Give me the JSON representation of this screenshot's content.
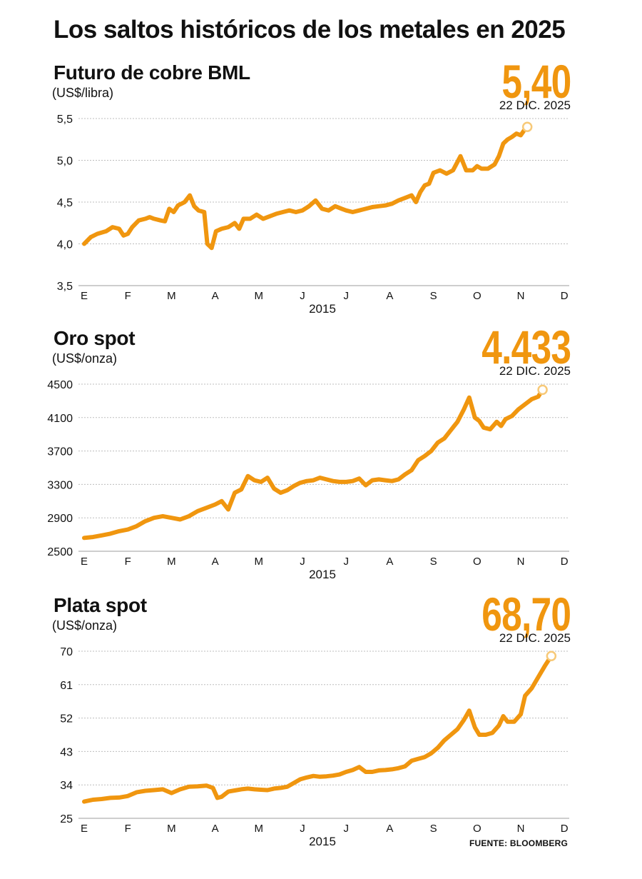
{
  "title": "Los saltos históricos de los metales en 2025",
  "source": "FUENTE: BLOOMBERG",
  "colors": {
    "line": "#f0960f",
    "end_marker": "#f7c978",
    "grid": "#bdbdbd",
    "text": "#111111"
  },
  "chart_data": [
    {
      "type": "line",
      "title": "Futuro de cobre BML",
      "unit": "(US$/libra)",
      "last_value_label": "5,40",
      "last_date_label": "22 DIC. 2025",
      "x_ticks": [
        "E",
        "F",
        "M",
        "A",
        "M",
        "J",
        "J",
        "A",
        "S",
        "O",
        "N",
        "D"
      ],
      "xlabel": "2015",
      "y_ticks": [
        "5,5",
        "5,0",
        "4,5",
        "4,0",
        "3,5"
      ],
      "ylim": [
        3.5,
        5.5
      ],
      "series": [
        {
          "values": [
            [
              0,
              4.0
            ],
            [
              0.15,
              4.08
            ],
            [
              0.3,
              4.12
            ],
            [
              0.5,
              4.15
            ],
            [
              0.65,
              4.2
            ],
            [
              0.8,
              4.18
            ],
            [
              0.9,
              4.1
            ],
            [
              1.0,
              4.12
            ],
            [
              1.1,
              4.2
            ],
            [
              1.25,
              4.28
            ],
            [
              1.4,
              4.3
            ],
            [
              1.5,
              4.32
            ],
            [
              1.6,
              4.3
            ],
            [
              1.75,
              4.28
            ],
            [
              1.85,
              4.27
            ],
            [
              1.95,
              4.42
            ],
            [
              2.05,
              4.38
            ],
            [
              2.15,
              4.46
            ],
            [
              2.3,
              4.5
            ],
            [
              2.42,
              4.58
            ],
            [
              2.52,
              4.45
            ],
            [
              2.62,
              4.4
            ],
            [
              2.75,
              4.38
            ],
            [
              2.82,
              4.0
            ],
            [
              2.92,
              3.95
            ],
            [
              3.02,
              4.15
            ],
            [
              3.15,
              4.18
            ],
            [
              3.3,
              4.2
            ],
            [
              3.45,
              4.25
            ],
            [
              3.55,
              4.18
            ],
            [
              3.65,
              4.3
            ],
            [
              3.8,
              4.3
            ],
            [
              3.95,
              4.35
            ],
            [
              4.1,
              4.3
            ],
            [
              4.25,
              4.33
            ],
            [
              4.4,
              4.36
            ],
            [
              4.55,
              4.38
            ],
            [
              4.7,
              4.4
            ],
            [
              4.85,
              4.38
            ],
            [
              5.0,
              4.4
            ],
            [
              5.15,
              4.45
            ],
            [
              5.3,
              4.52
            ],
            [
              5.45,
              4.42
            ],
            [
              5.6,
              4.4
            ],
            [
              5.75,
              4.45
            ],
            [
              5.9,
              4.42
            ],
            [
              6.0,
              4.4
            ],
            [
              6.15,
              4.38
            ],
            [
              6.3,
              4.4
            ],
            [
              6.45,
              4.42
            ],
            [
              6.6,
              4.44
            ],
            [
              6.75,
              4.45
            ],
            [
              6.9,
              4.46
            ],
            [
              7.05,
              4.48
            ],
            [
              7.2,
              4.52
            ],
            [
              7.35,
              4.55
            ],
            [
              7.5,
              4.58
            ],
            [
              7.6,
              4.5
            ],
            [
              7.7,
              4.62
            ],
            [
              7.8,
              4.7
            ],
            [
              7.9,
              4.72
            ],
            [
              8.0,
              4.85
            ],
            [
              8.15,
              4.88
            ],
            [
              8.3,
              4.84
            ],
            [
              8.45,
              4.88
            ],
            [
              8.55,
              4.98
            ],
            [
              8.62,
              5.05
            ],
            [
              8.75,
              4.88
            ],
            [
              8.9,
              4.88
            ],
            [
              9.0,
              4.93
            ],
            [
              9.1,
              4.9
            ],
            [
              9.25,
              4.9
            ],
            [
              9.4,
              4.95
            ],
            [
              9.5,
              5.05
            ],
            [
              9.6,
              5.2
            ],
            [
              9.7,
              5.25
            ],
            [
              9.8,
              5.28
            ],
            [
              9.9,
              5.32
            ],
            [
              10.0,
              5.3
            ],
            [
              10.08,
              5.36
            ],
            [
              10.15,
              5.4
            ]
          ]
        }
      ]
    },
    {
      "type": "line",
      "title": "Oro spot",
      "unit": "(US$/onza)",
      "last_value_label": "4.433",
      "last_date_label": "22 DIC. 2025",
      "x_ticks": [
        "E",
        "F",
        "M",
        "A",
        "M",
        "J",
        "J",
        "A",
        "S",
        "O",
        "N",
        "D"
      ],
      "xlabel": "2015",
      "y_ticks": [
        "4500",
        "4100",
        "3700",
        "3300",
        "2900",
        "2500"
      ],
      "ylim": [
        2500,
        4500
      ],
      "series": [
        {
          "values": [
            [
              0,
              2660
            ],
            [
              0.2,
              2670
            ],
            [
              0.4,
              2690
            ],
            [
              0.6,
              2710
            ],
            [
              0.8,
              2740
            ],
            [
              1.0,
              2760
            ],
            [
              1.2,
              2800
            ],
            [
              1.4,
              2860
            ],
            [
              1.6,
              2900
            ],
            [
              1.8,
              2920
            ],
            [
              2.0,
              2900
            ],
            [
              2.2,
              2880
            ],
            [
              2.4,
              2920
            ],
            [
              2.6,
              2980
            ],
            [
              2.8,
              3020
            ],
            [
              3.0,
              3060
            ],
            [
              3.15,
              3100
            ],
            [
              3.3,
              3000
            ],
            [
              3.45,
              3200
            ],
            [
              3.6,
              3240
            ],
            [
              3.75,
              3400
            ],
            [
              3.9,
              3350
            ],
            [
              4.05,
              3330
            ],
            [
              4.2,
              3380
            ],
            [
              4.35,
              3250
            ],
            [
              4.5,
              3200
            ],
            [
              4.65,
              3230
            ],
            [
              4.8,
              3280
            ],
            [
              4.95,
              3320
            ],
            [
              5.1,
              3340
            ],
            [
              5.25,
              3350
            ],
            [
              5.4,
              3380
            ],
            [
              5.55,
              3360
            ],
            [
              5.7,
              3340
            ],
            [
              5.85,
              3330
            ],
            [
              6.0,
              3330
            ],
            [
              6.15,
              3340
            ],
            [
              6.3,
              3370
            ],
            [
              6.45,
              3290
            ],
            [
              6.6,
              3350
            ],
            [
              6.75,
              3360
            ],
            [
              6.9,
              3350
            ],
            [
              7.05,
              3340
            ],
            [
              7.2,
              3360
            ],
            [
              7.35,
              3420
            ],
            [
              7.5,
              3470
            ],
            [
              7.65,
              3590
            ],
            [
              7.8,
              3640
            ],
            [
              7.95,
              3700
            ],
            [
              8.1,
              3800
            ],
            [
              8.25,
              3850
            ],
            [
              8.4,
              3950
            ],
            [
              8.55,
              4050
            ],
            [
              8.7,
              4200
            ],
            [
              8.82,
              4340
            ],
            [
              8.95,
              4100
            ],
            [
              9.05,
              4060
            ],
            [
              9.15,
              3980
            ],
            [
              9.3,
              3960
            ],
            [
              9.45,
              4050
            ],
            [
              9.55,
              4000
            ],
            [
              9.65,
              4080
            ],
            [
              9.8,
              4120
            ],
            [
              9.95,
              4200
            ],
            [
              10.1,
              4260
            ],
            [
              10.25,
              4320
            ],
            [
              10.4,
              4350
            ],
            [
              10.5,
              4433
            ]
          ]
        }
      ]
    },
    {
      "type": "line",
      "title": "Plata spot",
      "unit": "(US$/onza)",
      "last_value_label": "68,70",
      "last_date_label": "22 DIC. 2025",
      "x_ticks": [
        "E",
        "F",
        "M",
        "A",
        "M",
        "J",
        "J",
        "A",
        "S",
        "O",
        "N",
        "D"
      ],
      "xlabel": "2015",
      "y_ticks": [
        "70",
        "61",
        "52",
        "43",
        "34",
        "25"
      ],
      "ylim": [
        25,
        70
      ],
      "series": [
        {
          "values": [
            [
              0,
              29.5
            ],
            [
              0.2,
              30.0
            ],
            [
              0.4,
              30.2
            ],
            [
              0.6,
              30.5
            ],
            [
              0.8,
              30.6
            ],
            [
              1.0,
              31.0
            ],
            [
              1.2,
              32.0
            ],
            [
              1.4,
              32.4
            ],
            [
              1.6,
              32.6
            ],
            [
              1.8,
              32.8
            ],
            [
              2.0,
              31.8
            ],
            [
              2.2,
              32.8
            ],
            [
              2.4,
              33.5
            ],
            [
              2.6,
              33.6
            ],
            [
              2.8,
              33.8
            ],
            [
              2.95,
              33.2
            ],
            [
              3.05,
              30.5
            ],
            [
              3.15,
              30.8
            ],
            [
              3.3,
              32.2
            ],
            [
              3.45,
              32.5
            ],
            [
              3.6,
              32.8
            ],
            [
              3.75,
              33.0
            ],
            [
              3.9,
              32.8
            ],
            [
              4.05,
              32.7
            ],
            [
              4.2,
              32.6
            ],
            [
              4.35,
              33.0
            ],
            [
              4.5,
              33.2
            ],
            [
              4.65,
              33.5
            ],
            [
              4.8,
              34.5
            ],
            [
              4.95,
              35.5
            ],
            [
              5.1,
              36.0
            ],
            [
              5.25,
              36.4
            ],
            [
              5.4,
              36.2
            ],
            [
              5.55,
              36.3
            ],
            [
              5.7,
              36.5
            ],
            [
              5.85,
              36.8
            ],
            [
              6.0,
              37.5
            ],
            [
              6.15,
              38.0
            ],
            [
              6.3,
              38.8
            ],
            [
              6.45,
              37.5
            ],
            [
              6.6,
              37.5
            ],
            [
              6.75,
              37.9
            ],
            [
              6.9,
              38.0
            ],
            [
              7.05,
              38.2
            ],
            [
              7.2,
              38.5
            ],
            [
              7.35,
              39.0
            ],
            [
              7.5,
              40.5
            ],
            [
              7.65,
              41.0
            ],
            [
              7.8,
              41.5
            ],
            [
              7.95,
              42.5
            ],
            [
              8.1,
              44.0
            ],
            [
              8.25,
              46.0
            ],
            [
              8.4,
              47.5
            ],
            [
              8.55,
              49.0
            ],
            [
              8.7,
              51.5
            ],
            [
              8.82,
              54.0
            ],
            [
              8.95,
              49.5
            ],
            [
              9.05,
              47.5
            ],
            [
              9.2,
              47.5
            ],
            [
              9.35,
              48.0
            ],
            [
              9.5,
              50.0
            ],
            [
              9.6,
              52.5
            ],
            [
              9.7,
              51.0
            ],
            [
              9.85,
              51.0
            ],
            [
              10.0,
              53.0
            ],
            [
              10.1,
              58.0
            ],
            [
              10.25,
              60.0
            ],
            [
              10.4,
              63.0
            ],
            [
              10.55,
              66.0
            ],
            [
              10.7,
              68.7
            ]
          ]
        }
      ]
    }
  ]
}
